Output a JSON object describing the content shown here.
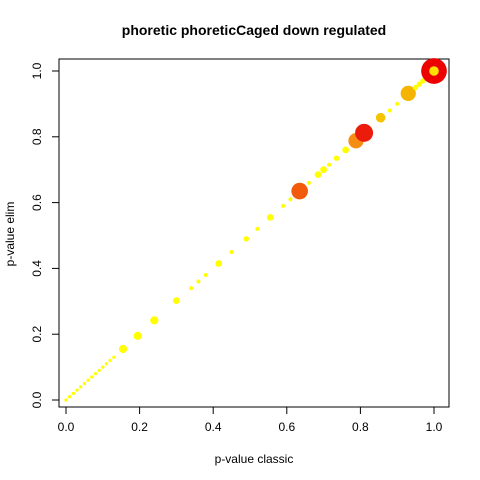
{
  "chart_data": {
    "type": "scatter",
    "title": "phoretic phoreticCaged down regulated",
    "xlabel": "p-value classic",
    "ylabel": "p-value elim",
    "xlim": [
      0.0,
      1.0
    ],
    "ylim": [
      0.0,
      1.0
    ],
    "x_ticks": [
      "0.0",
      "0.2",
      "0.4",
      "0.6",
      "0.8",
      "1.0"
    ],
    "y_ticks": [
      "0.0",
      "0.2",
      "0.4",
      "0.6",
      "0.8",
      "1.0"
    ],
    "grid": false,
    "legend": "none",
    "points": [
      {
        "x": 0.0,
        "y": 0.0,
        "size": 0.3,
        "color": "#FFFF00"
      },
      {
        "x": 0.01,
        "y": 0.01,
        "size": 0.3,
        "color": "#FFFF00"
      },
      {
        "x": 0.02,
        "y": 0.02,
        "size": 0.3,
        "color": "#FFFF00"
      },
      {
        "x": 0.03,
        "y": 0.03,
        "size": 0.3,
        "color": "#FFFF00"
      },
      {
        "x": 0.04,
        "y": 0.04,
        "size": 0.3,
        "color": "#FFFF00"
      },
      {
        "x": 0.05,
        "y": 0.05,
        "size": 0.3,
        "color": "#FFFF00"
      },
      {
        "x": 0.06,
        "y": 0.06,
        "size": 0.3,
        "color": "#FFFF00"
      },
      {
        "x": 0.07,
        "y": 0.07,
        "size": 0.3,
        "color": "#FFFF00"
      },
      {
        "x": 0.08,
        "y": 0.08,
        "size": 0.3,
        "color": "#FFFF00"
      },
      {
        "x": 0.09,
        "y": 0.09,
        "size": 0.3,
        "color": "#FFFF00"
      },
      {
        "x": 0.1,
        "y": 0.1,
        "size": 0.3,
        "color": "#FFFF00"
      },
      {
        "x": 0.11,
        "y": 0.11,
        "size": 0.3,
        "color": "#FFFF00"
      },
      {
        "x": 0.12,
        "y": 0.12,
        "size": 0.3,
        "color": "#FFFF00"
      },
      {
        "x": 0.13,
        "y": 0.13,
        "size": 0.3,
        "color": "#FFFF00"
      },
      {
        "x": 0.155,
        "y": 0.155,
        "size": 1.0,
        "color": "#FFFF00"
      },
      {
        "x": 0.195,
        "y": 0.195,
        "size": 1.0,
        "color": "#FFFF00"
      },
      {
        "x": 0.24,
        "y": 0.242,
        "size": 1.0,
        "color": "#FFFF00"
      },
      {
        "x": 0.3,
        "y": 0.302,
        "size": 0.8,
        "color": "#FFFF00"
      },
      {
        "x": 0.34,
        "y": 0.34,
        "size": 0.4,
        "color": "#FFFF00"
      },
      {
        "x": 0.36,
        "y": 0.36,
        "size": 0.4,
        "color": "#FFFF00"
      },
      {
        "x": 0.38,
        "y": 0.38,
        "size": 0.4,
        "color": "#FFFF00"
      },
      {
        "x": 0.415,
        "y": 0.415,
        "size": 0.8,
        "color": "#FFFF00"
      },
      {
        "x": 0.45,
        "y": 0.45,
        "size": 0.4,
        "color": "#FFFF00"
      },
      {
        "x": 0.49,
        "y": 0.49,
        "size": 0.6,
        "color": "#FFFF00"
      },
      {
        "x": 0.52,
        "y": 0.52,
        "size": 0.4,
        "color": "#FFFF00"
      },
      {
        "x": 0.555,
        "y": 0.555,
        "size": 0.8,
        "color": "#FFFF00"
      },
      {
        "x": 0.59,
        "y": 0.59,
        "size": 0.4,
        "color": "#FFFF00"
      },
      {
        "x": 0.61,
        "y": 0.61,
        "size": 0.4,
        "color": "#FFFF00"
      },
      {
        "x": 0.635,
        "y": 0.635,
        "size": 2.2,
        "color": "#F25A0C"
      },
      {
        "x": 0.66,
        "y": 0.66,
        "size": 0.4,
        "color": "#FFFF00"
      },
      {
        "x": 0.685,
        "y": 0.685,
        "size": 0.8,
        "color": "#FFFF00"
      },
      {
        "x": 0.7,
        "y": 0.7,
        "size": 0.8,
        "color": "#FFFF00"
      },
      {
        "x": 0.715,
        "y": 0.715,
        "size": 0.4,
        "color": "#FFFF00"
      },
      {
        "x": 0.735,
        "y": 0.735,
        "size": 0.6,
        "color": "#FFFF00"
      },
      {
        "x": 0.76,
        "y": 0.76,
        "size": 0.8,
        "color": "#FFFF00"
      },
      {
        "x": 0.788,
        "y": 0.788,
        "size": 2.0,
        "color": "#F58C14"
      },
      {
        "x": 0.81,
        "y": 0.812,
        "size": 2.4,
        "color": "#EC1C0C"
      },
      {
        "x": 0.855,
        "y": 0.858,
        "size": 1.2,
        "color": "#F5C400"
      },
      {
        "x": 0.88,
        "y": 0.88,
        "size": 0.4,
        "color": "#FFFF00"
      },
      {
        "x": 0.9,
        "y": 0.9,
        "size": 0.4,
        "color": "#FFFF00"
      },
      {
        "x": 0.93,
        "y": 0.932,
        "size": 2.0,
        "color": "#F5B400"
      },
      {
        "x": 0.95,
        "y": 0.95,
        "size": 0.6,
        "color": "#FFFF00"
      },
      {
        "x": 0.96,
        "y": 0.96,
        "size": 0.6,
        "color": "#FFFF00"
      },
      {
        "x": 0.97,
        "y": 0.97,
        "size": 0.6,
        "color": "#FFFF00"
      },
      {
        "x": 0.98,
        "y": 0.98,
        "size": 0.8,
        "color": "#FFFF00"
      },
      {
        "x": 0.99,
        "y": 0.99,
        "size": 0.8,
        "color": "#FFFF00"
      },
      {
        "x": 1.0,
        "y": 1.0,
        "size": 3.5,
        "color": "#EC0000"
      },
      {
        "x": 1.0,
        "y": 1.0,
        "size": 1.2,
        "color": "#FFE000"
      }
    ]
  }
}
